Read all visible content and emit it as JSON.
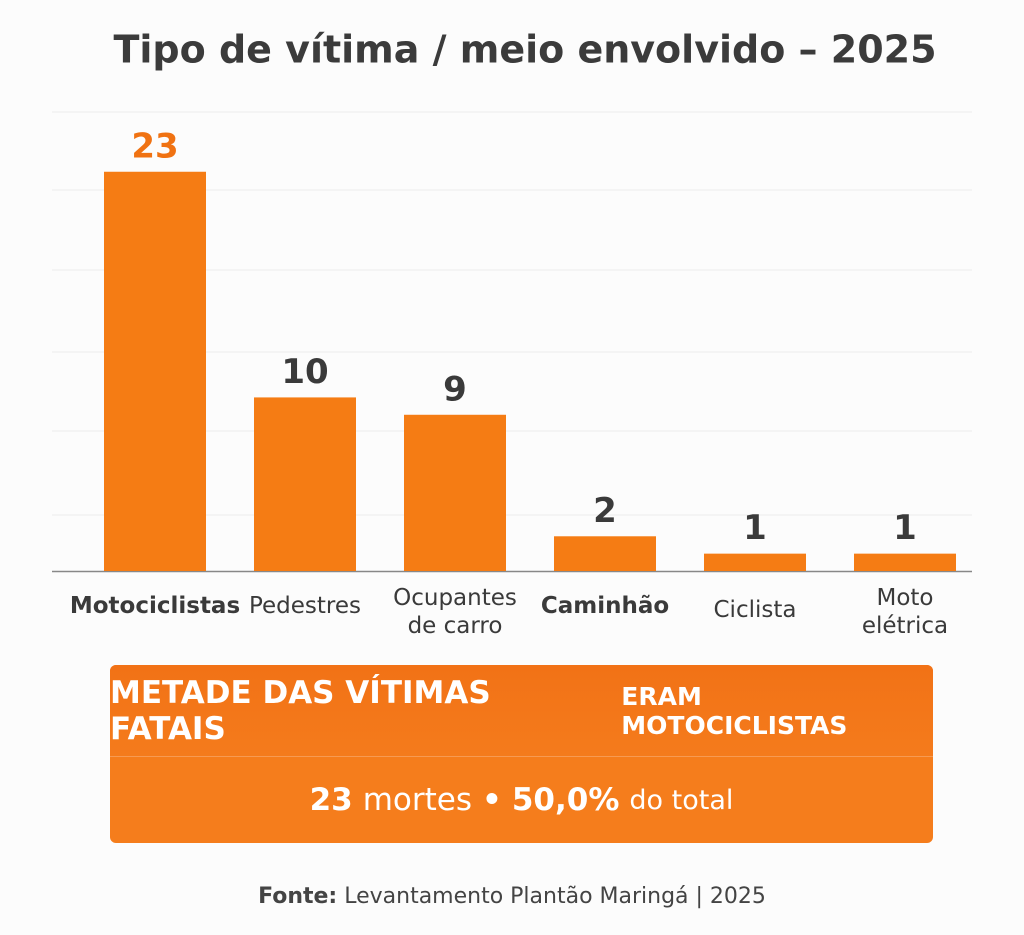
{
  "chart_data": {
    "type": "bar",
    "title": "Tipo de vítima / meio envolvido – 2025",
    "categories": [
      "Motociclistas",
      "Pedestres",
      "Ocupantes de carro",
      "Caminhão",
      "Ciclista",
      "Moto elétrica"
    ],
    "values": [
      23,
      10,
      9,
      2,
      1,
      1
    ],
    "color": "#f57c14",
    "ylim": [
      0,
      26.5
    ]
  },
  "highlight": {
    "headline": [
      "METADE DAS VÍTIMAS FATAIS",
      "ERAM MOTOCICLISTAS"
    ],
    "detail": [
      "23",
      "mortes",
      "•",
      "50,0%",
      "do total"
    ]
  },
  "footer": {
    "label": "Fonte:",
    "text": "Levantamento Plantão Maringá | 2025"
  }
}
